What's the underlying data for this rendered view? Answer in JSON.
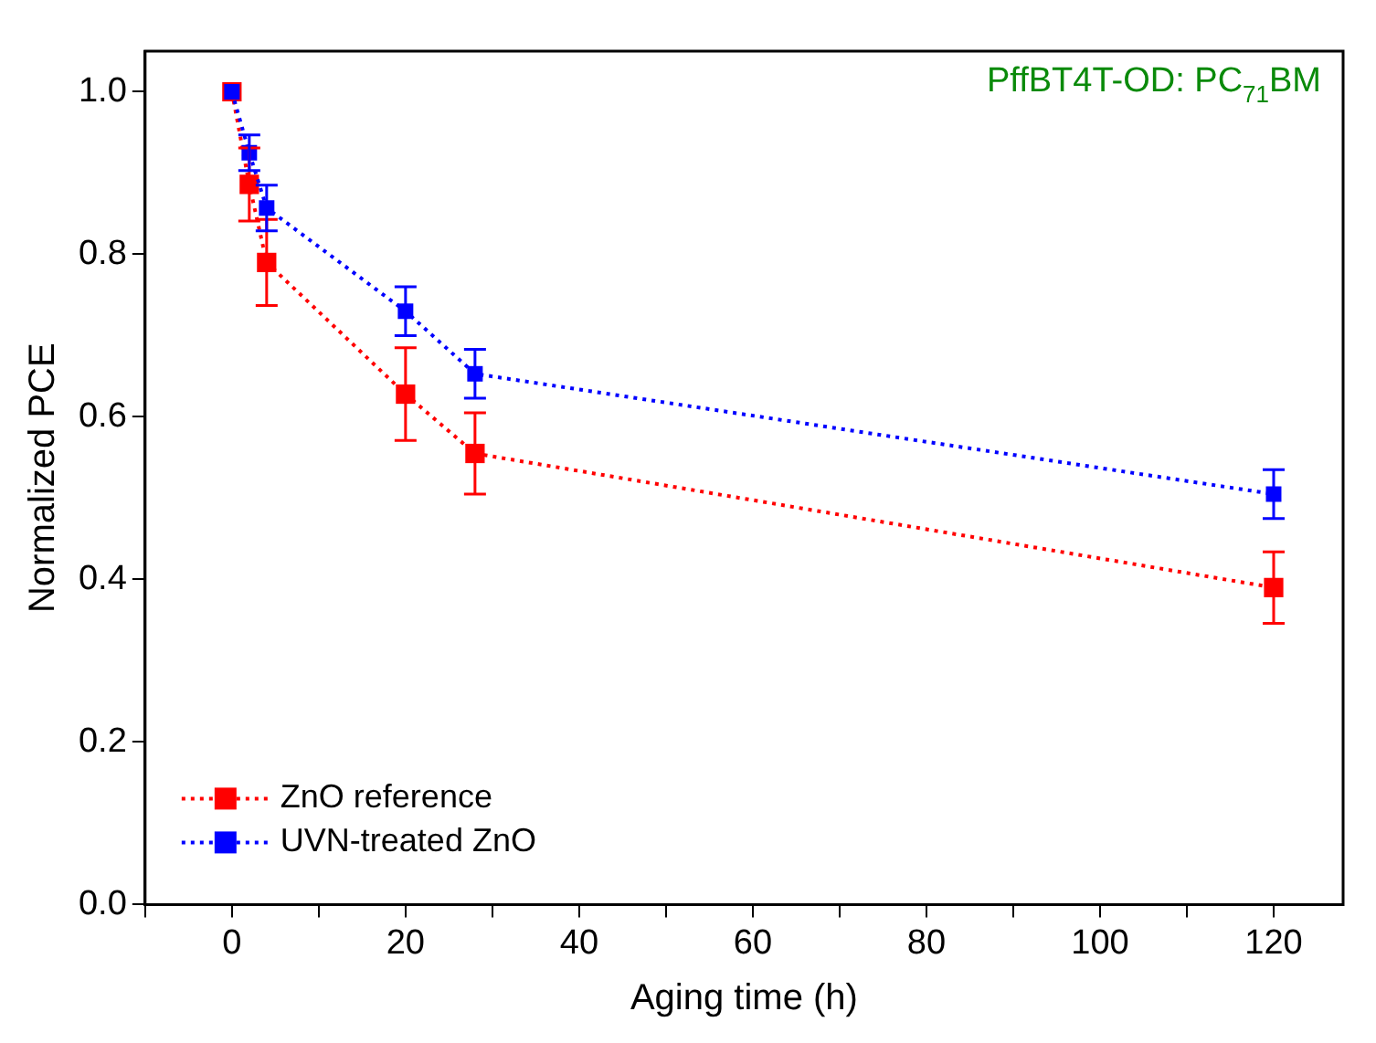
{
  "chart_data": {
    "type": "line",
    "xlabel": "Aging time (h)",
    "ylabel": "Normalized PCE",
    "annotations": [
      "PffBT4T-OD: PC$_{71}$BM"
    ],
    "x": [
      0,
      2,
      4,
      20,
      28,
      120
    ],
    "series": [
      {
        "name": "ZnO reference",
        "color": "#ff0000",
        "values": [
          1.0,
          0.886,
          0.79,
          0.628,
          0.555,
          0.39
        ],
        "errors": [
          null,
          0.045,
          0.053,
          0.057,
          0.05,
          0.044
        ]
      },
      {
        "name": "UVN-treated ZnO",
        "color": "#0000ff",
        "values": [
          1.0,
          0.925,
          0.857,
          0.73,
          0.653,
          0.505
        ],
        "errors": [
          null,
          0.022,
          0.028,
          0.03,
          0.03,
          0.03
        ]
      }
    ],
    "xlim": [
      -10,
      128
    ],
    "xticks": [
      {
        "value": -10,
        "label": null
      },
      0,
      {
        "value": 10,
        "label": null
      },
      20,
      {
        "value": 30,
        "label": null
      },
      40,
      {
        "value": 50,
        "label": null
      },
      60,
      {
        "value": 70,
        "label": null
      },
      80,
      {
        "value": 90,
        "label": null
      },
      100,
      {
        "value": 110,
        "label": null
      },
      120
    ],
    "ylim": [
      0,
      1.05
    ],
    "yticks": [
      {
        "value": 0,
        "label": "0.0"
      },
      {
        "value": 0.2,
        "label": "0.2"
      },
      {
        "value": 0.4,
        "label": "0.4"
      },
      {
        "value": 0.6,
        "label": "0.6"
      },
      {
        "value": 0.8,
        "label": "0.8"
      },
      {
        "value": 1,
        "label": "1.0"
      }
    ],
    "grid": false,
    "legend": "bottom left",
    "marker": "square",
    "line_style": "dotted"
  }
}
